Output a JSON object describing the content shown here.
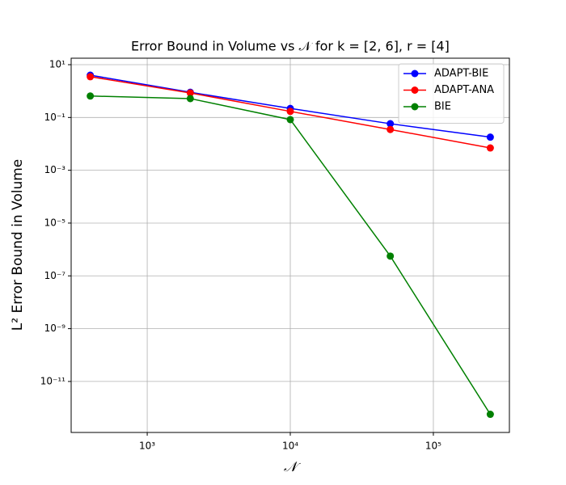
{
  "chart_data": {
    "type": "line",
    "title": "Error Bound in Volume vs 𝒩 for  k = [2, 6], r = [4]",
    "xlabel": "𝒩",
    "ylabel": "L² Error Bound in Volume",
    "x": [
      400,
      2000,
      10000,
      50000,
      250000
    ],
    "series": [
      {
        "name": "ADAPT-BIE",
        "color": "#0000ff",
        "values": [
          4.0,
          0.9,
          0.22,
          0.058,
          0.018
        ]
      },
      {
        "name": "ADAPT-ANA",
        "color": "#ff0000",
        "values": [
          3.5,
          0.85,
          0.17,
          0.035,
          0.007
        ]
      },
      {
        "name": "BIE",
        "color": "#008000",
        "values": [
          0.65,
          0.52,
          0.083,
          5.6e-07,
          5.7e-13
        ]
      }
    ],
    "xscale": "log",
    "yscale": "log",
    "xlim": [
      294,
      340000
    ],
    "ylim": [
      17.6,
      1.17e-13
    ],
    "xticks": [
      {
        "value": 1000,
        "label": "10³"
      },
      {
        "value": 10000,
        "label": "10⁴"
      },
      {
        "value": 100000,
        "label": "10⁵"
      }
    ],
    "yticks": [
      {
        "value": 10,
        "label": "10¹"
      },
      {
        "value": 0.1,
        "label": "10⁻¹"
      },
      {
        "value": 0.001,
        "label": "10⁻³"
      },
      {
        "value": 1e-05,
        "label": "10⁻⁵"
      },
      {
        "value": 1e-07,
        "label": "10⁻⁷"
      },
      {
        "value": 1e-09,
        "label": "10⁻⁹"
      },
      {
        "value": 1e-11,
        "label": "10⁻¹¹"
      }
    ],
    "grid": true,
    "legend": "upper right"
  }
}
